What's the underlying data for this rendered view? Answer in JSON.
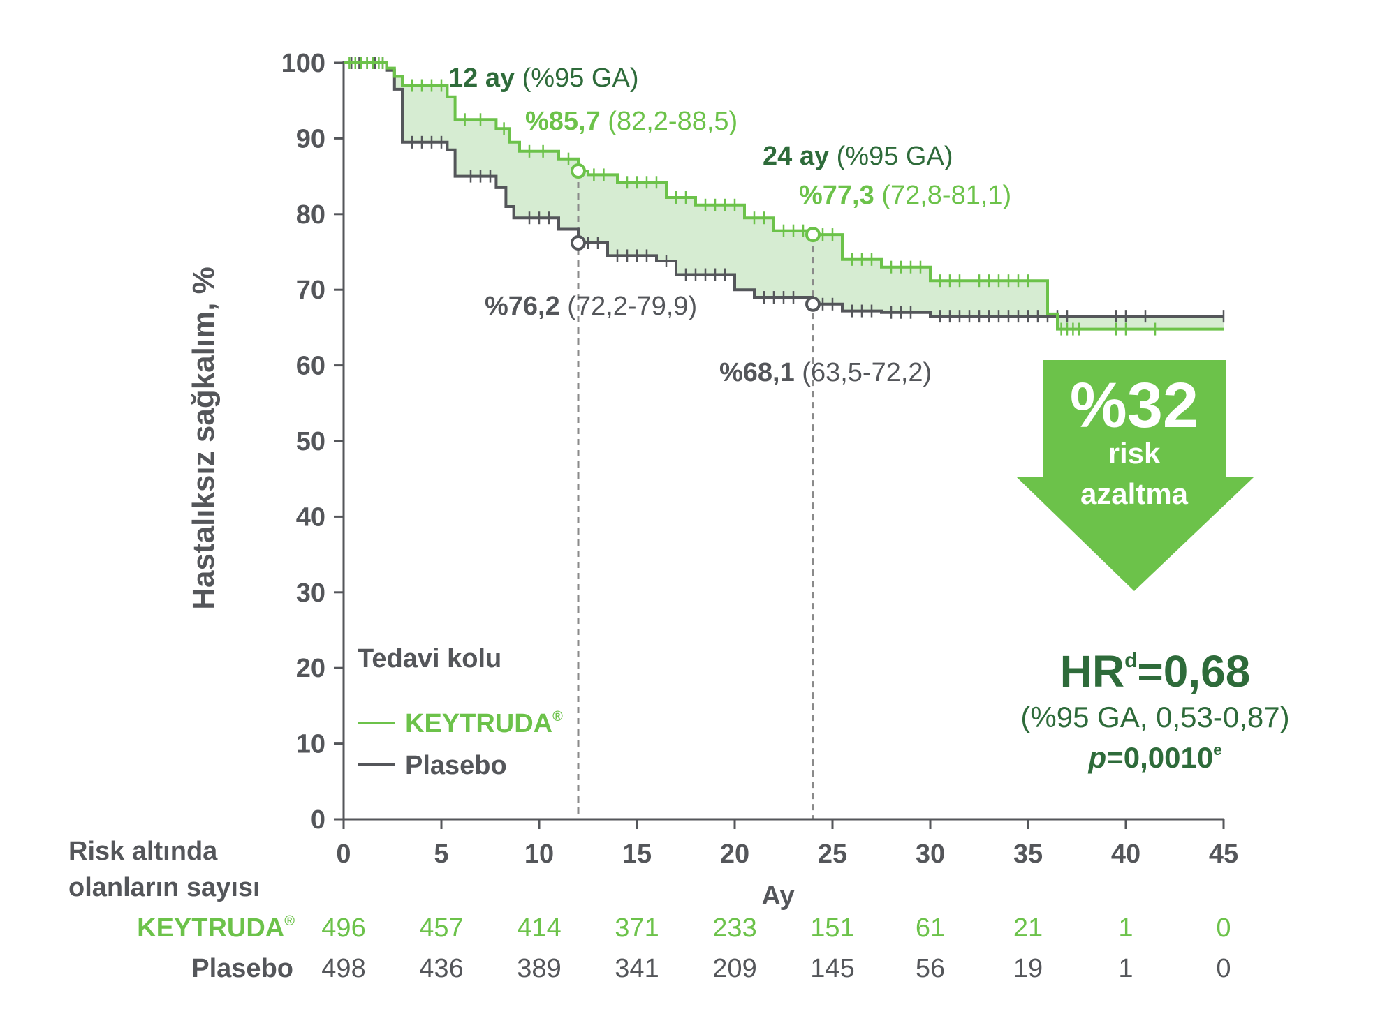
{
  "colors": {
    "keytruda": "#6cc24a",
    "placebo": "#54565a",
    "dark_green": "#2e6b3a",
    "band": "#d6ecd2",
    "arrow": "#6cc24a"
  },
  "chart_data": {
    "type": "line",
    "ylabel": "Hastalıksız sağkalım, %",
    "xlabel": "Ay",
    "xlim": [
      0,
      45
    ],
    "ylim": [
      0,
      100
    ],
    "x_ticks": [
      "0",
      "5",
      "10",
      "15",
      "20",
      "25",
      "30",
      "35",
      "40",
      "45"
    ],
    "y_ticks": [
      "0",
      "10",
      "20",
      "30",
      "40",
      "50",
      "60",
      "70",
      "80",
      "90",
      "100"
    ],
    "legend": {
      "title": "Tedavi kolu",
      "placement": "bottom-left",
      "items": [
        {
          "label": "KEYTRUDA",
          "sup": "®",
          "color": "#6cc24a"
        },
        {
          "label": "Plasebo",
          "sup": "",
          "color": "#54565a"
        }
      ]
    },
    "series": [
      {
        "name": "KEYTRUDA®",
        "color": "#6cc24a",
        "x": [
          0,
          2.2,
          2.6,
          3.0,
          5.3,
          5.7,
          7.8,
          8.5,
          9.0,
          11.0,
          12.0,
          12.5,
          14.0,
          16.5,
          18.0,
          20.5,
          22.0,
          24.0,
          25.5,
          27.5,
          30.0,
          32.0,
          36.0,
          36.5,
          45.0
        ],
        "y": [
          100,
          99.3,
          98.2,
          97.0,
          95.5,
          92.5,
          91.3,
          89.5,
          88.3,
          87.3,
          85.7,
          85.2,
          84.2,
          82.2,
          81.2,
          79.5,
          77.8,
          77.3,
          74.0,
          73.0,
          71.2,
          71.2,
          66.8,
          64.8,
          64.8
        ],
        "censor_x": [
          0.3,
          0.6,
          0.9,
          1.2,
          1.5,
          1.8,
          2.0,
          3.5,
          4.0,
          4.5,
          5.0,
          6.2,
          7.0,
          8.2,
          9.5,
          10.2,
          11.5,
          12.8,
          13.3,
          14.5,
          15.0,
          15.5,
          16.0,
          17.0,
          17.5,
          18.5,
          19.0,
          19.5,
          20.0,
          21.0,
          21.5,
          22.5,
          23.0,
          23.5,
          24.5,
          25.0,
          26.0,
          26.5,
          27.0,
          28.0,
          28.5,
          29.0,
          29.5,
          30.5,
          31.0,
          31.5,
          32.5,
          33.0,
          33.5,
          34.0,
          34.5,
          35.0,
          36.7,
          37.0,
          37.3,
          37.6,
          39.5,
          40.0,
          41.5
        ],
        "markers": [
          {
            "x": 12,
            "y": 85.7
          },
          {
            "x": 24,
            "y": 77.3
          }
        ]
      },
      {
        "name": "Plasebo",
        "color": "#54565a",
        "x": [
          0,
          2.2,
          2.6,
          3.0,
          5.3,
          5.7,
          7.8,
          8.3,
          8.7,
          11.0,
          12.0,
          13.5,
          16.0,
          17.0,
          20.0,
          21.0,
          24.0,
          25.5,
          27.5,
          30.0,
          45.0
        ],
        "y": [
          100,
          99.0,
          96.5,
          89.5,
          88.5,
          85.0,
          83.5,
          81.0,
          79.5,
          78.0,
          76.2,
          74.5,
          73.8,
          72.0,
          70.0,
          69.0,
          68.1,
          67.2,
          67.0,
          66.5,
          66.5
        ],
        "censor_x": [
          0.4,
          0.8,
          1.2,
          1.6,
          2.0,
          3.5,
          4.0,
          4.5,
          5.0,
          6.5,
          7.0,
          7.5,
          9.5,
          10.0,
          10.5,
          12.5,
          13.0,
          14.0,
          14.5,
          15.0,
          15.5,
          16.5,
          17.5,
          18.0,
          18.5,
          19.0,
          19.5,
          21.5,
          22.0,
          22.5,
          23.0,
          24.5,
          25.0,
          26.0,
          26.5,
          27.0,
          28.0,
          28.5,
          29.0,
          30.5,
          31.0,
          31.5,
          32.0,
          32.5,
          33.0,
          33.5,
          34.0,
          34.5,
          35.0,
          35.5,
          36.0,
          36.5,
          37.0,
          39.5,
          40.0,
          41.0,
          45.0
        ]
      }
    ],
    "band": {
      "between": [
        "KEYTRUDA®",
        "Plasebo"
      ],
      "color": "#d6ecd2"
    },
    "reference_lines_x": [
      12,
      24
    ],
    "annotations": {
      "a12_month": "12 ay",
      "a12_ci": " (%95 GA)",
      "a12_k_val": "%85,7",
      "a12_k_ci": " (82,2-88,5)",
      "a12_p_val": "%76,2",
      "a12_p_ci": " (72,2-79,9)",
      "a24_month": "24 ay",
      "a24_ci": " (%95 GA)",
      "a24_k_val": "%77,3",
      "a24_k_ci": " (72,8-81,1)",
      "a24_p_val": "%68,1",
      "a24_p_ci": " (63,5-72,2)"
    },
    "arrow_box": {
      "big": "%32",
      "line1": "risk",
      "line2": "azaltma"
    },
    "hr": {
      "label": "HR",
      "sup": "d",
      "value": "=0,68",
      "ci": "(%95 GA, 0,53-0,87)",
      "p_label": "p",
      "p_value": "=0,0010",
      "p_sup": "e"
    },
    "risk_table": {
      "title_line1": "Risk altında",
      "title_line2": "olanların sayısı",
      "rows": [
        {
          "label": "KEYTRUDA",
          "sup": "®",
          "values": [
            496,
            457,
            414,
            371,
            233,
            151,
            61,
            21,
            1,
            0
          ]
        },
        {
          "label": "Plasebo",
          "sup": "",
          "values": [
            498,
            436,
            389,
            341,
            209,
            145,
            56,
            19,
            1,
            0
          ]
        }
      ]
    }
  }
}
